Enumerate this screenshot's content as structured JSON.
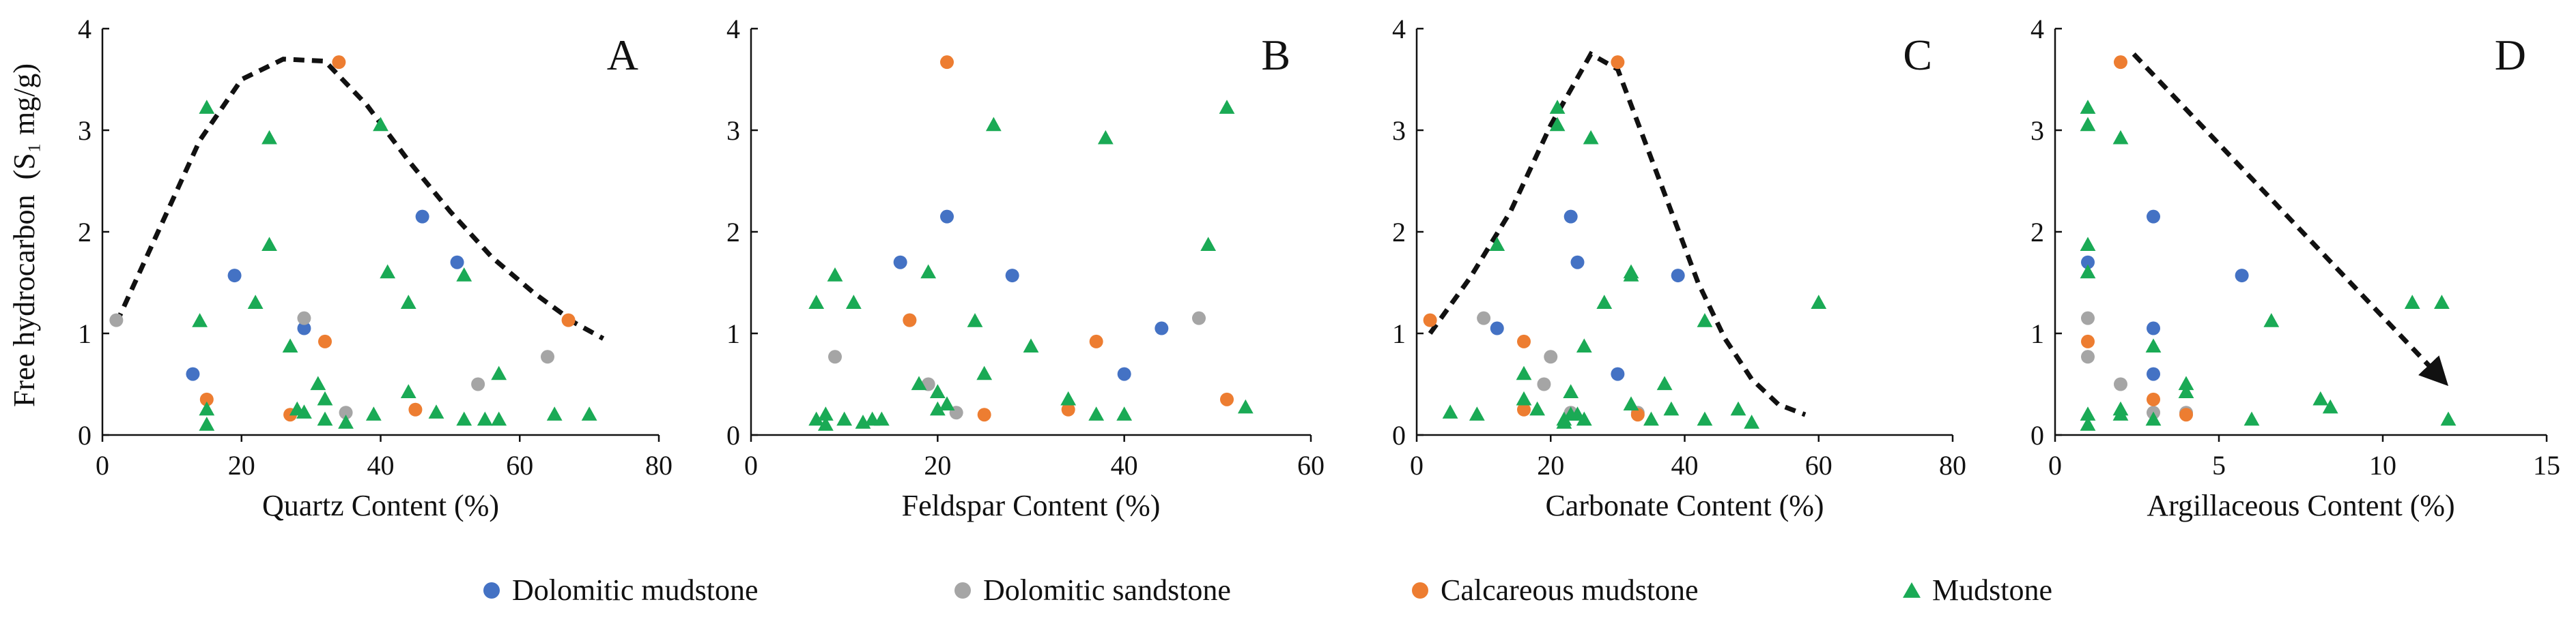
{
  "legend": [
    {
      "key": "dolomitic_mudstone",
      "label": "Dolomitic mudstone",
      "color": "#4472c4",
      "marker": "circle"
    },
    {
      "key": "dolomitic_sandstone",
      "label": "Dolomitic sandstone",
      "color": "#a5a5a5",
      "marker": "circle"
    },
    {
      "key": "calcareous_mudstone",
      "label": "Calcareous mudstone",
      "color": "#ed7d31",
      "marker": "circle"
    },
    {
      "key": "mudstone",
      "label": "Mudstone",
      "color": "#1aaa55",
      "marker": "triangle"
    }
  ],
  "chart_data": [
    {
      "type": "scatter",
      "panel": "A",
      "xlabel": "Quartz Content (%)",
      "ylabel": "Free hydrocarbon  (S₁ mg/g)",
      "xlim": [
        0,
        80
      ],
      "ylim": [
        0,
        4
      ],
      "xticks": [
        0,
        20,
        40,
        60,
        80
      ],
      "yticks": [
        0,
        1,
        2,
        3,
        4
      ],
      "series": [
        {
          "name": "dolomitic_mudstone",
          "points": [
            [
              13,
              0.6
            ],
            [
              19,
              1.57
            ],
            [
              29,
              1.05
            ],
            [
              46,
              2.15
            ],
            [
              51,
              1.7
            ]
          ]
        },
        {
          "name": "dolomitic_sandstone",
          "points": [
            [
              2,
              1.13
            ],
            [
              29,
              1.15
            ],
            [
              35,
              0.22
            ],
            [
              54,
              0.5
            ],
            [
              64,
              0.77
            ]
          ]
        },
        {
          "name": "calcareous_mudstone",
          "points": [
            [
              15,
              0.35
            ],
            [
              27,
              0.2
            ],
            [
              32,
              0.92
            ],
            [
              34,
              3.67
            ],
            [
              45,
              0.25
            ],
            [
              67,
              1.13
            ]
          ]
        },
        {
          "name": "mudstone",
          "points": [
            [
              14,
              1.12
            ],
            [
              15,
              3.22
            ],
            [
              15,
              0.25
            ],
            [
              15,
              0.1
            ],
            [
              22,
              1.3
            ],
            [
              24,
              2.92
            ],
            [
              24,
              1.87
            ],
            [
              27,
              0.87
            ],
            [
              28,
              0.25
            ],
            [
              29,
              0.22
            ],
            [
              31,
              0.5
            ],
            [
              32,
              0.35
            ],
            [
              32,
              0.15
            ],
            [
              35,
              0.12
            ],
            [
              39,
              0.2
            ],
            [
              40,
              3.05
            ],
            [
              41,
              1.6
            ],
            [
              44,
              1.3
            ],
            [
              44,
              0.42
            ],
            [
              48,
              0.22
            ],
            [
              52,
              1.57
            ],
            [
              52,
              0.15
            ],
            [
              55,
              0.15
            ],
            [
              57,
              0.6
            ],
            [
              57,
              0.15
            ],
            [
              65,
              0.2
            ],
            [
              70,
              0.2
            ]
          ]
        }
      ],
      "trend": [
        [
          2,
          1.1
        ],
        [
          8,
          2.0
        ],
        [
          14,
          2.9
        ],
        [
          20,
          3.5
        ],
        [
          26,
          3.7
        ],
        [
          32,
          3.68
        ],
        [
          38,
          3.25
        ],
        [
          44,
          2.7
        ],
        [
          50,
          2.2
        ],
        [
          56,
          1.75
        ],
        [
          62,
          1.4
        ],
        [
          68,
          1.1
        ],
        [
          72,
          0.95
        ]
      ]
    },
    {
      "type": "scatter",
      "panel": "B",
      "xlabel": "Feldspar Content (%)",
      "xlim": [
        0,
        60
      ],
      "ylim": [
        0,
        4
      ],
      "xticks": [
        0,
        20,
        40,
        60
      ],
      "yticks": [
        0,
        1,
        2,
        3,
        4
      ],
      "series": [
        {
          "name": "dolomitic_mudstone",
          "points": [
            [
              16,
              1.7
            ],
            [
              21,
              2.15
            ],
            [
              28,
              1.57
            ],
            [
              40,
              0.6
            ],
            [
              44,
              1.05
            ]
          ]
        },
        {
          "name": "dolomitic_sandstone",
          "points": [
            [
              9,
              0.77
            ],
            [
              17,
              1.13
            ],
            [
              19,
              0.5
            ],
            [
              22,
              0.22
            ],
            [
              48,
              1.15
            ]
          ]
        },
        {
          "name": "calcareous_mudstone",
          "points": [
            [
              17,
              1.13
            ],
            [
              21,
              3.67
            ],
            [
              25,
              0.2
            ],
            [
              34,
              0.25
            ],
            [
              37,
              0.92
            ],
            [
              51,
              0.35
            ]
          ]
        },
        {
          "name": "mudstone",
          "points": [
            [
              7,
              1.3
            ],
            [
              7,
              0.15
            ],
            [
              8,
              0.2
            ],
            [
              8,
              0.1
            ],
            [
              9,
              1.57
            ],
            [
              10,
              0.15
            ],
            [
              11,
              1.3
            ],
            [
              12,
              0.12
            ],
            [
              13,
              0.15
            ],
            [
              14,
              0.15
            ],
            [
              18,
              0.5
            ],
            [
              19,
              1.6
            ],
            [
              20,
              0.42
            ],
            [
              20,
              0.25
            ],
            [
              21,
              0.3
            ],
            [
              24,
              1.12
            ],
            [
              25,
              0.6
            ],
            [
              26,
              3.05
            ],
            [
              30,
              0.87
            ],
            [
              34,
              0.35
            ],
            [
              37,
              0.2
            ],
            [
              38,
              2.92
            ],
            [
              40,
              0.2
            ],
            [
              49,
              1.87
            ],
            [
              51,
              3.22
            ],
            [
              53,
              0.27
            ]
          ]
        }
      ]
    },
    {
      "type": "scatter",
      "panel": "C",
      "xlabel": "Carbonate Content (%)",
      "xlim": [
        0,
        80
      ],
      "ylim": [
        0,
        4
      ],
      "xticks": [
        0,
        20,
        40,
        60,
        80
      ],
      "yticks": [
        0,
        1,
        2,
        3,
        4
      ],
      "series": [
        {
          "name": "dolomitic_mudstone",
          "points": [
            [
              12,
              1.05
            ],
            [
              23,
              2.15
            ],
            [
              24,
              1.7
            ],
            [
              30,
              0.6
            ],
            [
              39,
              1.57
            ]
          ]
        },
        {
          "name": "dolomitic_sandstone",
          "points": [
            [
              10,
              1.15
            ],
            [
              19,
              0.5
            ],
            [
              20,
              0.77
            ],
            [
              23,
              0.22
            ],
            [
              33,
              0.22
            ]
          ]
        },
        {
          "name": "calcareous_mudstone",
          "points": [
            [
              2,
              1.13
            ],
            [
              16,
              0.92
            ],
            [
              16,
              0.25
            ],
            [
              30,
              3.67
            ],
            [
              33,
              0.2
            ]
          ]
        },
        {
          "name": "mudstone",
          "points": [
            [
              5,
              0.22
            ],
            [
              9,
              0.2
            ],
            [
              12,
              1.87
            ],
            [
              16,
              0.6
            ],
            [
              16,
              0.35
            ],
            [
              18,
              0.25
            ],
            [
              21,
              3.22
            ],
            [
              21,
              3.05
            ],
            [
              22,
              0.15
            ],
            [
              22,
              0.12
            ],
            [
              23,
              0.42
            ],
            [
              23,
              0.2
            ],
            [
              24,
              0.2
            ],
            [
              25,
              0.87
            ],
            [
              25,
              0.15
            ],
            [
              26,
              2.92
            ],
            [
              28,
              1.3
            ],
            [
              32,
              1.57
            ],
            [
              32,
              1.6
            ],
            [
              32,
              0.3
            ],
            [
              35,
              0.15
            ],
            [
              37,
              0.5
            ],
            [
              38,
              0.25
            ],
            [
              43,
              1.12
            ],
            [
              43,
              0.15
            ],
            [
              48,
              0.25
            ],
            [
              50,
              0.12
            ],
            [
              60,
              1.3
            ]
          ]
        }
      ],
      "trend": [
        [
          2,
          1.0
        ],
        [
          8,
          1.55
        ],
        [
          14,
          2.2
        ],
        [
          20,
          3.05
        ],
        [
          26,
          3.75
        ],
        [
          30,
          3.6
        ],
        [
          34,
          2.9
        ],
        [
          38,
          2.2
        ],
        [
          42,
          1.5
        ],
        [
          46,
          0.95
        ],
        [
          50,
          0.55
        ],
        [
          54,
          0.3
        ],
        [
          58,
          0.2
        ]
      ]
    },
    {
      "type": "scatter",
      "panel": "D",
      "xlabel": "Argillaceous Content (%)",
      "xlim": [
        0,
        15
      ],
      "ylim": [
        0,
        4
      ],
      "xticks": [
        0,
        5,
        10,
        15
      ],
      "yticks": [
        0,
        1,
        2,
        3,
        4
      ],
      "series": [
        {
          "name": "dolomitic_mudstone",
          "points": [
            [
              1,
              1.7
            ],
            [
              3,
              2.15
            ],
            [
              3,
              1.05
            ],
            [
              3,
              0.6
            ],
            [
              5.7,
              1.57
            ]
          ]
        },
        {
          "name": "dolomitic_sandstone",
          "points": [
            [
              1,
              1.15
            ],
            [
              1,
              0.77
            ],
            [
              2,
              0.5
            ],
            [
              3,
              0.22
            ],
            [
              4,
              0.22
            ]
          ]
        },
        {
          "name": "calcareous_mudstone",
          "points": [
            [
              1,
              0.92
            ],
            [
              2,
              3.67
            ],
            [
              3,
              0.35
            ],
            [
              4,
              0.2
            ]
          ]
        },
        {
          "name": "mudstone",
          "points": [
            [
              1,
              3.22
            ],
            [
              1,
              3.05
            ],
            [
              1,
              1.87
            ],
            [
              1,
              1.6
            ],
            [
              1,
              0.2
            ],
            [
              1,
              0.1
            ],
            [
              2,
              2.92
            ],
            [
              2,
              0.25
            ],
            [
              2,
              0.2
            ],
            [
              3,
              0.87
            ],
            [
              3,
              0.15
            ],
            [
              4,
              0.5
            ],
            [
              4,
              0.42
            ],
            [
              6,
              0.15
            ],
            [
              6.6,
              1.12
            ],
            [
              8.1,
              0.35
            ],
            [
              8.4,
              0.27
            ],
            [
              10.9,
              1.3
            ],
            [
              11.8,
              1.3
            ],
            [
              12,
              0.15
            ]
          ]
        }
      ],
      "trend": [
        [
          2.4,
          3.75
        ],
        [
          11.8,
          0.55
        ]
      ]
    }
  ]
}
